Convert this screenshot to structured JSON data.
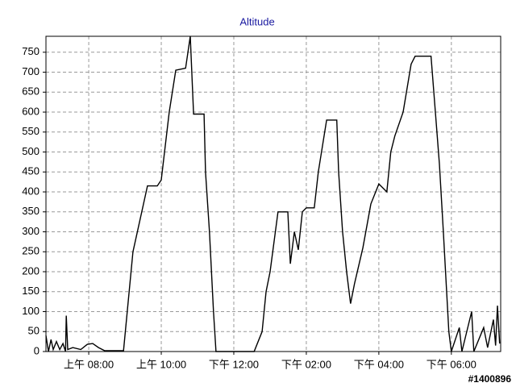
{
  "chart_data": {
    "type": "line",
    "title": "Altitude",
    "color": "#000000",
    "x": [
      6.82,
      6.89,
      6.96,
      7.02,
      7.11,
      7.2,
      7.29,
      7.36,
      7.38,
      7.42,
      7.56,
      7.78,
      7.96,
      8.11,
      8.27,
      8.44,
      8.96,
      9.22,
      9.51,
      9.62,
      9.89,
      10.0,
      10.22,
      10.4,
      10.67,
      10.8,
      10.89,
      11.18,
      11.22,
      11.33,
      11.44,
      11.51,
      12.56,
      12.78,
      12.89,
      13.0,
      13.22,
      13.49,
      13.56,
      13.67,
      13.78,
      13.89,
      14.0,
      14.22,
      14.33,
      14.56,
      14.84,
      14.89,
      15.0,
      15.11,
      15.22,
      15.33,
      15.56,
      15.78,
      16.0,
      16.22,
      16.33,
      16.44,
      16.67,
      16.89,
      17.0,
      17.44,
      17.56,
      17.67,
      17.78,
      17.84,
      17.93,
      18.0,
      18.22,
      18.29,
      18.56,
      18.62,
      18.89,
      19.0,
      19.16,
      19.22,
      19.27,
      19.33
    ],
    "values": [
      40,
      0,
      30,
      5,
      25,
      5,
      20,
      0,
      90,
      5,
      10,
      5,
      18,
      20,
      10,
      2,
      2,
      250,
      370,
      415,
      415,
      430,
      600,
      705,
      710,
      790,
      595,
      595,
      450,
      300,
      100,
      0,
      0,
      50,
      150,
      200,
      350,
      350,
      220,
      300,
      255,
      350,
      360,
      360,
      450,
      580,
      580,
      450,
      300,
      200,
      120,
      170,
      260,
      370,
      420,
      400,
      500,
      540,
      600,
      720,
      740,
      740,
      600,
      470,
      300,
      200,
      50,
      0,
      60,
      0,
      100,
      0,
      60,
      10,
      80,
      15,
      115,
      20
    ],
    "xlim": [
      6.82,
      19.36
    ],
    "xticks": [
      {
        "value": 8,
        "label": "上午 08:00"
      },
      {
        "value": 10,
        "label": "上午 10:00"
      },
      {
        "value": 12,
        "label": "下午 12:00"
      },
      {
        "value": 14,
        "label": "下午 02:00"
      },
      {
        "value": 16,
        "label": "下午 04:00"
      },
      {
        "value": 18,
        "label": "下午 06:00"
      }
    ],
    "ylim": [
      0,
      790
    ],
    "yticks": [
      0,
      50,
      100,
      150,
      200,
      250,
      300,
      350,
      400,
      450,
      500,
      550,
      600,
      650,
      700,
      750
    ],
    "grid": true
  },
  "watermark": "#1400896"
}
